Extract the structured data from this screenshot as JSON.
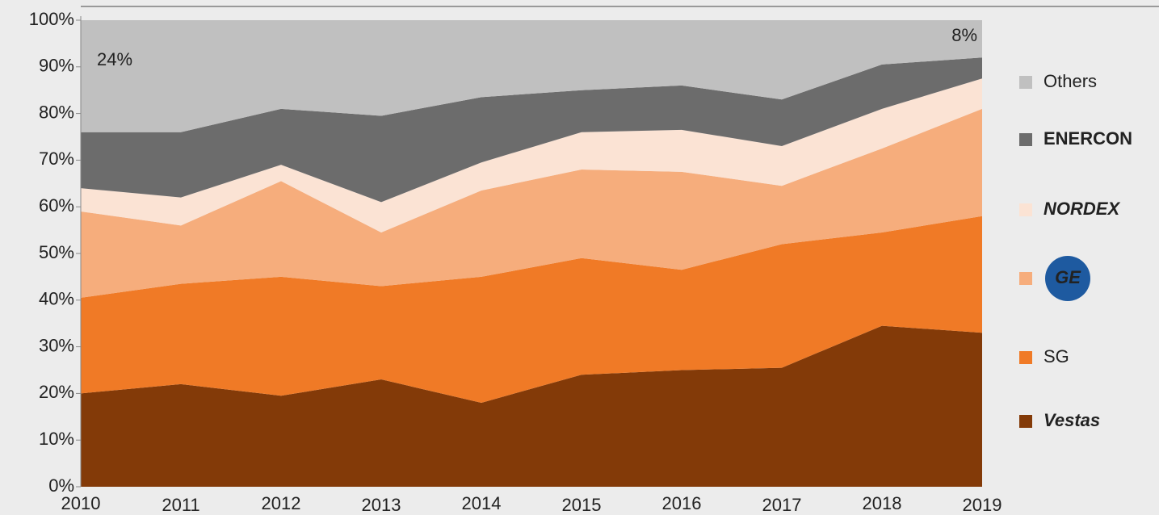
{
  "chart_data": {
    "type": "stacked_area",
    "categories": [
      "2010",
      "2011",
      "2012",
      "2013",
      "2014",
      "2015",
      "2016",
      "2017",
      "2018",
      "2019"
    ],
    "series": [
      {
        "name": "Vestas",
        "color": "#833a08",
        "values": [
          20,
          22,
          19.5,
          23,
          18,
          24,
          25,
          25.5,
          34.5,
          33
        ]
      },
      {
        "name": "SG",
        "color": "#f07a26",
        "values": [
          20.5,
          21.5,
          25.5,
          20,
          27,
          25,
          21.5,
          26.5,
          20,
          25
        ]
      },
      {
        "name": "GE",
        "color": "#f6ad7c",
        "values": [
          18.5,
          12.5,
          20.5,
          11.5,
          18.5,
          19,
          21,
          12.5,
          18,
          23
        ]
      },
      {
        "name": "NORDEX",
        "color": "#fbe3d4",
        "values": [
          5,
          6,
          3.5,
          6.5,
          6,
          8,
          9,
          8.5,
          8.5,
          6.5
        ]
      },
      {
        "name": "ENERCON",
        "color": "#6c6c6c",
        "values": [
          12,
          14,
          12,
          18.5,
          14,
          9,
          9.5,
          10,
          9.5,
          4.5
        ]
      },
      {
        "name": "Others",
        "color": "#c0c0c0",
        "values": [
          24,
          24,
          19,
          20.5,
          16.5,
          15,
          14,
          17,
          9.5,
          8
        ]
      }
    ],
    "annotations": [
      "24%",
      "8%"
    ],
    "ylim": [
      0,
      100
    ],
    "yticks": [
      {
        "value": 0,
        "label": "0%"
      },
      {
        "value": 10,
        "label": "10%"
      },
      {
        "value": 20,
        "label": "20%"
      },
      {
        "value": 30,
        "label": "30%"
      },
      {
        "value": 40,
        "label": "40%"
      },
      {
        "value": 50,
        "label": "50%"
      },
      {
        "value": 60,
        "label": "60%"
      },
      {
        "value": 70,
        "label": "70%"
      },
      {
        "value": 80,
        "label": "80%"
      },
      {
        "value": 90,
        "label": "90%"
      },
      {
        "value": 100,
        "label": "100%"
      }
    ]
  }
}
